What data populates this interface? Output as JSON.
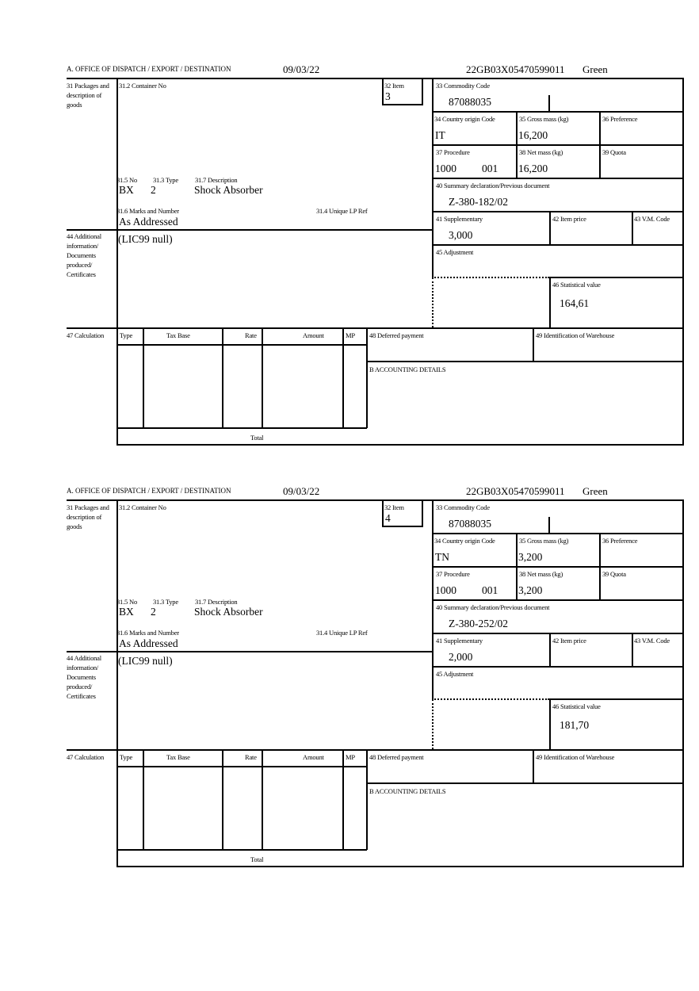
{
  "labels": {
    "office": "A.  OFFICE OF DISPATCH / EXPORT / DESTINATION",
    "box31": "31 Packages and description of goods",
    "box31_2": "31.2 Container No",
    "box32": "32 Item",
    "box31_5": "31.5 No",
    "box31_3": "31.3 Type",
    "box31_7": "31.7 Description",
    "box31_6": "31.6 Marks and Number",
    "box31_4": "31.4 Unique LP Ref",
    "box33": "33 Commodity Code",
    "box34": "34 Country origin Code",
    "box35": "35 Gross mass (kg)",
    "box36": "36 Preference",
    "box37": "37 Procedure",
    "box38": "38 Net mass (kg)",
    "box39": "39 Quota",
    "box40": "40 Summary declaration/Previous document",
    "box41": "41 Supplementary",
    "box42": "42 Item price",
    "box43": "43 V.M. Code",
    "box44": "44 Additional information/ Documents produced/ Certificates",
    "box45": "45 Adjustment",
    "box46": "46 Statistical value",
    "box47": "47 Calculation",
    "col_type": "Type",
    "col_taxbase": "Tax Base",
    "col_rate": "Rate",
    "col_amount": "Amount",
    "col_mp": "MP",
    "box48": "48 Deferred payment",
    "box49": "49 Identification of Warehouse",
    "boxB": "B ACCOUNTING DETAILS",
    "total": "Total"
  },
  "forms": [
    {
      "date": "09/03/22",
      "reference": "22GB03X05470599011",
      "route": "Green",
      "item": "3",
      "no": "BX",
      "type": "2",
      "description": "Shock Absorber",
      "marks": "As Addressed",
      "additional_info": "(LIC99 null)",
      "commodity_code": "87088035",
      "country_origin": "IT",
      "gross_mass": "16,200",
      "procedure": "1000",
      "procedure_suffix": "001",
      "net_mass": "16,200",
      "previous_document": "Z-380-182/02",
      "supplementary": "3,000",
      "statistical_value": "164,61"
    },
    {
      "date": "09/03/22",
      "reference": "22GB03X05470599011",
      "route": "Green",
      "item": "4",
      "no": "BX",
      "type": "2",
      "description": "Shock Absorber",
      "marks": "As Addressed",
      "additional_info": "(LIC99 null)",
      "commodity_code": "87088035",
      "country_origin": "TN",
      "gross_mass": "3,200",
      "procedure": "1000",
      "procedure_suffix": "001",
      "net_mass": "3,200",
      "previous_document": "Z-380-252/02",
      "supplementary": "2,000",
      "statistical_value": "181,70"
    }
  ]
}
